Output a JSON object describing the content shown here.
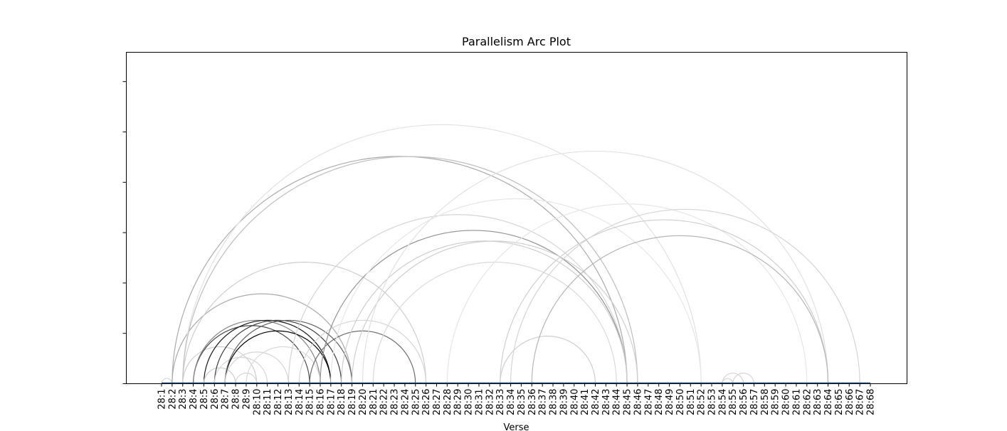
{
  "chart_data": {
    "type": "arc",
    "title": "Parallelism Arc Plot",
    "xlabel": "Verse",
    "ylabel": "",
    "categories": [
      "28:1",
      "28:2",
      "28:3",
      "28:4",
      "28:5",
      "28:6",
      "28:7",
      "28:8",
      "28:9",
      "28:10",
      "28:11",
      "28:12",
      "28:13",
      "28:14",
      "28:15",
      "28:16",
      "28:17",
      "28:18",
      "28:19",
      "28:20",
      "28:21",
      "28:22",
      "28:23",
      "28:24",
      "28:25",
      "28:26",
      "28:27",
      "28:28",
      "28:29",
      "28:30",
      "28:31",
      "28:32",
      "28:33",
      "28:34",
      "28:35",
      "28:36",
      "28:37",
      "28:38",
      "28:39",
      "28:40",
      "28:41",
      "28:42",
      "28:43",
      "28:44",
      "28:45",
      "28:46",
      "28:47",
      "28:48",
      "28:49",
      "28:50",
      "28:51",
      "28:52",
      "28:53",
      "28:54",
      "28:55",
      "28:56",
      "28:57",
      "28:58",
      "28:59",
      "28:60",
      "28:61",
      "28:62",
      "28:63",
      "28:64",
      "28:65",
      "28:66",
      "28:67",
      "28:68"
    ],
    "y_ticks": 7,
    "grid": false,
    "links": [
      {
        "from": "28:1",
        "to": "28:2",
        "weight": 0.12
      },
      {
        "from": "28:2",
        "to": "28:19",
        "weight": 0.3
      },
      {
        "from": "28:2",
        "to": "28:45",
        "weight": 0.3
      },
      {
        "from": "28:3",
        "to": "28:46",
        "weight": 0.1
      },
      {
        "from": "28:3",
        "to": "28:26",
        "weight": 0.15
      },
      {
        "from": "28:3",
        "to": "28:52",
        "weight": 0.07
      },
      {
        "from": "28:3",
        "to": "28:46",
        "weight": 0.2
      },
      {
        "from": "28:3",
        "to": "28:10",
        "weight": 0.15
      },
      {
        "from": "28:4",
        "to": "28:15",
        "weight": 0.7
      },
      {
        "from": "28:4",
        "to": "28:16",
        "weight": 0.45
      },
      {
        "from": "28:5",
        "to": "28:17",
        "weight": 0.9
      },
      {
        "from": "28:5",
        "to": "28:8",
        "weight": 0.15
      },
      {
        "from": "28:6",
        "to": "28:18",
        "weight": 0.75
      },
      {
        "from": "28:6",
        "to": "28:11",
        "weight": 0.12
      },
      {
        "from": "28:7",
        "to": "28:17",
        "weight": 1.0
      },
      {
        "from": "28:7",
        "to": "28:19",
        "weight": 0.6
      },
      {
        "from": "28:7",
        "to": "28:13",
        "weight": 0.12
      },
      {
        "from": "28:8",
        "to": "28:10",
        "weight": 0.12
      },
      {
        "from": "28:9",
        "to": "28:16",
        "weight": 0.1
      },
      {
        "from": "28:13",
        "to": "28:45",
        "weight": 0.12
      },
      {
        "from": "28:14",
        "to": "28:26",
        "weight": 0.12
      },
      {
        "from": "28:15",
        "to": "28:25",
        "weight": 0.55
      },
      {
        "from": "28:16",
        "to": "28:45",
        "weight": 0.4
      },
      {
        "from": "28:17",
        "to": "28:52",
        "weight": 0.05
      },
      {
        "from": "28:18",
        "to": "28:45",
        "weight": 0.15
      },
      {
        "from": "28:19",
        "to": "28:19",
        "weight": 0.2
      },
      {
        "from": "28:19",
        "to": "28:46",
        "weight": 0.15
      },
      {
        "from": "28:20",
        "to": "28:64",
        "weight": 0.07
      },
      {
        "from": "28:21",
        "to": "28:44",
        "weight": 0.1
      },
      {
        "from": "28:28",
        "to": "28:62",
        "weight": 0.05
      },
      {
        "from": "28:33",
        "to": "28:64",
        "weight": 0.15
      },
      {
        "from": "28:33",
        "to": "28:42",
        "weight": 0.15
      },
      {
        "from": "28:34",
        "to": "28:67",
        "weight": 0.12
      },
      {
        "from": "28:36",
        "to": "28:64",
        "weight": 0.25
      },
      {
        "from": "28:54",
        "to": "28:56",
        "weight": 0.12
      },
      {
        "from": "28:54",
        "to": "28:55",
        "weight": 0.12
      },
      {
        "from": "28:55",
        "to": "28:57",
        "weight": 0.12
      }
    ]
  }
}
